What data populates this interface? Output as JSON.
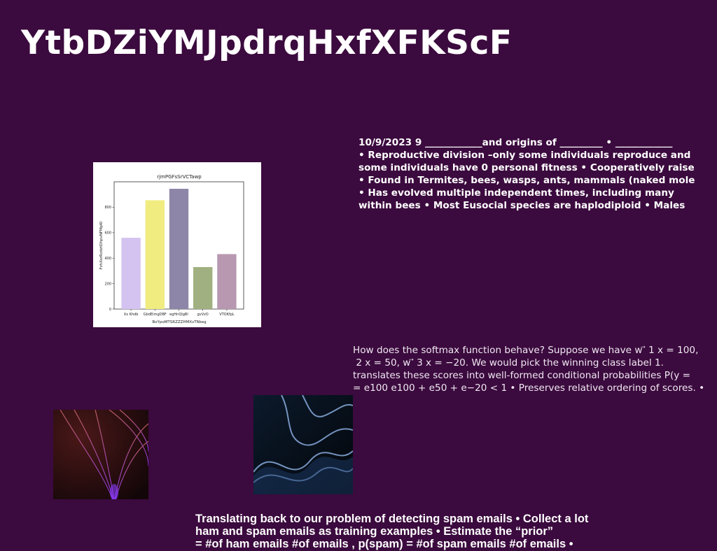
{
  "slide": {
    "title": "YtbDZiYMJpdrqHxfXFKScF"
  },
  "text_blocks": {
    "eusocial_lines": [
      "10/9/2023 9 ____________and origins of _________ • ____________",
      "• Reproductive division –only some individuals reproduce and",
      "some individuals have 0 personal fitness • Cooperatively raise",
      "• Found in Termites, bees, wasps, ants, mammals (naked mole",
      "• Has evolved multiple independent times, including many",
      "within bees • Most Eusocial species are haplodiploid • Males"
    ],
    "softmax_lines": [
      "How does the softmax function behave? Suppose we have w ⃗ 1 x = 100,",
      "⃗ 2 x = 50, w ⃗ 3 x = −20. We would pick the winning class label 1.",
      "translates these scores into well-formed conditional probabilities P(y =",
      "= e100 e100 + e50 + e−20 < 1 • Preserves relative ordering of scores. •"
    ],
    "spam_lines": [
      "Translating back to our problem of detecting spam emails • Collect a lot",
      "ham and spam emails as training examples • Estimate the “prior”",
      "= #of ham emails #of emails , p(spam) = #of spam emails #of emails •"
    ]
  },
  "chart_data": {
    "type": "bar",
    "title": "rjmPGFsSrVCTawp",
    "xlabel": "BoYpoMTSRZZZHMXvTNkeg",
    "ylabel": "FzhXsrRzdztDhpvNFMpKl",
    "categories": [
      "Xx Khdb",
      "GbdEimgDBF",
      "egHnQIgBI",
      "gvVzO",
      "VTOKfpL"
    ],
    "values": [
      560,
      855,
      945,
      330,
      432
    ],
    "colors": [
      "#d4c2f0",
      "#f0ec80",
      "#8e86a8",
      "#a0b080",
      "#b898b0"
    ],
    "ylim": [
      0,
      1000
    ],
    "yticks": [
      0,
      200,
      400,
      600,
      800
    ],
    "grid": false
  },
  "images": {
    "abstract_1": "purple-swirl-abstract",
    "abstract_2": "blue-wave-abstract"
  }
}
